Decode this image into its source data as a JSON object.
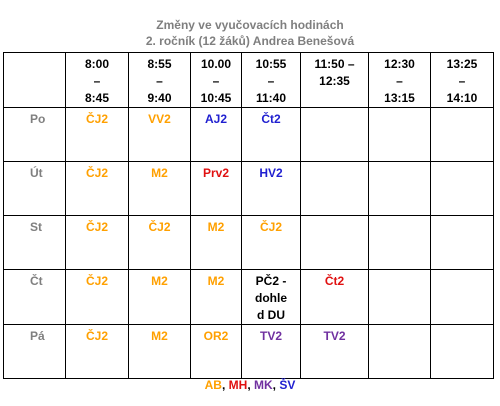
{
  "header": {
    "title_lines": [
      "Změny ve vyučovacích hodinách",
      "2. ročník (12 žáků) Andrea Benešová"
    ]
  },
  "table": {
    "header": [
      [
        "8:00",
        "–",
        "8:45"
      ],
      [
        "8:55",
        "–",
        "9:40"
      ],
      [
        "10.00",
        "–",
        "10:45"
      ],
      [
        "10:55",
        "–",
        "11:40"
      ],
      [
        "11:50 –",
        "12:35"
      ],
      [
        "12:30",
        "–",
        "13:15"
      ],
      [
        "13:25",
        "–",
        "14:10"
      ]
    ],
    "rows": [
      {
        "day": "Po",
        "cells": [
          {
            "lines": [
              "ČJ2"
            ],
            "color": "#ffa000"
          },
          {
            "lines": [
              "VV2"
            ],
            "color": "#ffa000"
          },
          {
            "lines": [
              "AJ2"
            ],
            "color": "#1f1fd0"
          },
          {
            "lines": [
              "Čt2"
            ],
            "color": "#1f1fd0"
          },
          null,
          null,
          null
        ]
      },
      {
        "day": "Út",
        "cells": [
          {
            "lines": [
              "ČJ2"
            ],
            "color": "#ffa000"
          },
          {
            "lines": [
              "M2"
            ],
            "color": "#ffa000"
          },
          {
            "lines": [
              "Prv2"
            ],
            "color": "#e01010"
          },
          {
            "lines": [
              "HV2"
            ],
            "color": "#1f1fd0"
          },
          null,
          null,
          null
        ]
      },
      {
        "day": "St",
        "cells": [
          {
            "lines": [
              "ČJ2"
            ],
            "color": "#ffa000"
          },
          {
            "lines": [
              "ČJ2"
            ],
            "color": "#ffa000"
          },
          {
            "lines": [
              "M2"
            ],
            "color": "#ffa000"
          },
          {
            "lines": [
              "ČJ2"
            ],
            "color": "#ffa000"
          },
          null,
          null,
          null
        ]
      },
      {
        "day": "Čt",
        "cells": [
          {
            "lines": [
              "ČJ2"
            ],
            "color": "#ffa000"
          },
          {
            "lines": [
              "M2"
            ],
            "color": "#ffa000"
          },
          {
            "lines": [
              "M2"
            ],
            "color": "#ffa000"
          },
          {
            "lines": [
              "PČ2 -",
              "dohle",
              "d DU"
            ],
            "color": "#000000"
          },
          {
            "lines": [
              "Čt2"
            ],
            "color": "#e01010"
          },
          null,
          null
        ]
      },
      {
        "day": "Pá",
        "cells": [
          {
            "lines": [
              "ČJ2"
            ],
            "color": "#ffa000"
          },
          {
            "lines": [
              "M2"
            ],
            "color": "#ffa000"
          },
          {
            "lines": [
              "OR2"
            ],
            "color": "#ffa000"
          },
          {
            "lines": [
              "TV2"
            ],
            "color": "#7030a0"
          },
          {
            "lines": [
              "TV2"
            ],
            "color": "#7030a0"
          },
          null,
          null
        ]
      }
    ]
  },
  "legend": {
    "separator": ",",
    "items": [
      {
        "text": "AB",
        "color": "#ffa000"
      },
      {
        "text": "MH",
        "color": "#e01010"
      },
      {
        "text": "MK",
        "color": "#7030a0"
      },
      {
        "text": "ŠV",
        "color": "#1f1fd0"
      }
    ]
  }
}
